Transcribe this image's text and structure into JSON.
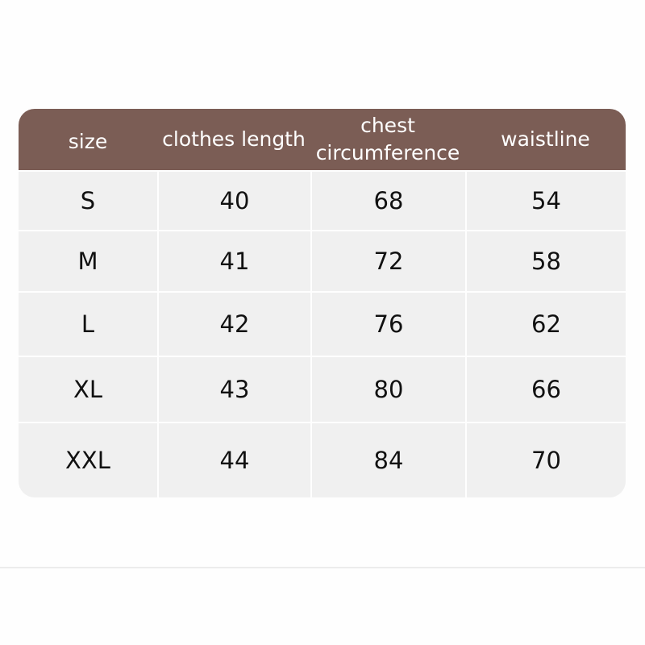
{
  "header": [
    "size",
    "clothes length",
    "chest circumference",
    "waistline"
  ],
  "rows": [
    [
      "S",
      "40",
      "68",
      "54"
    ],
    [
      "M",
      "41",
      "72",
      "58"
    ],
    [
      "L",
      "42",
      "76",
      "62"
    ],
    [
      "XL",
      "43",
      "80",
      "66"
    ],
    [
      "XXL",
      "44",
      "84",
      "70"
    ]
  ],
  "colors": {
    "header_bg": "#7b5d55",
    "cell_bg": "#f0f0f0",
    "header_text": "#ffffff"
  }
}
